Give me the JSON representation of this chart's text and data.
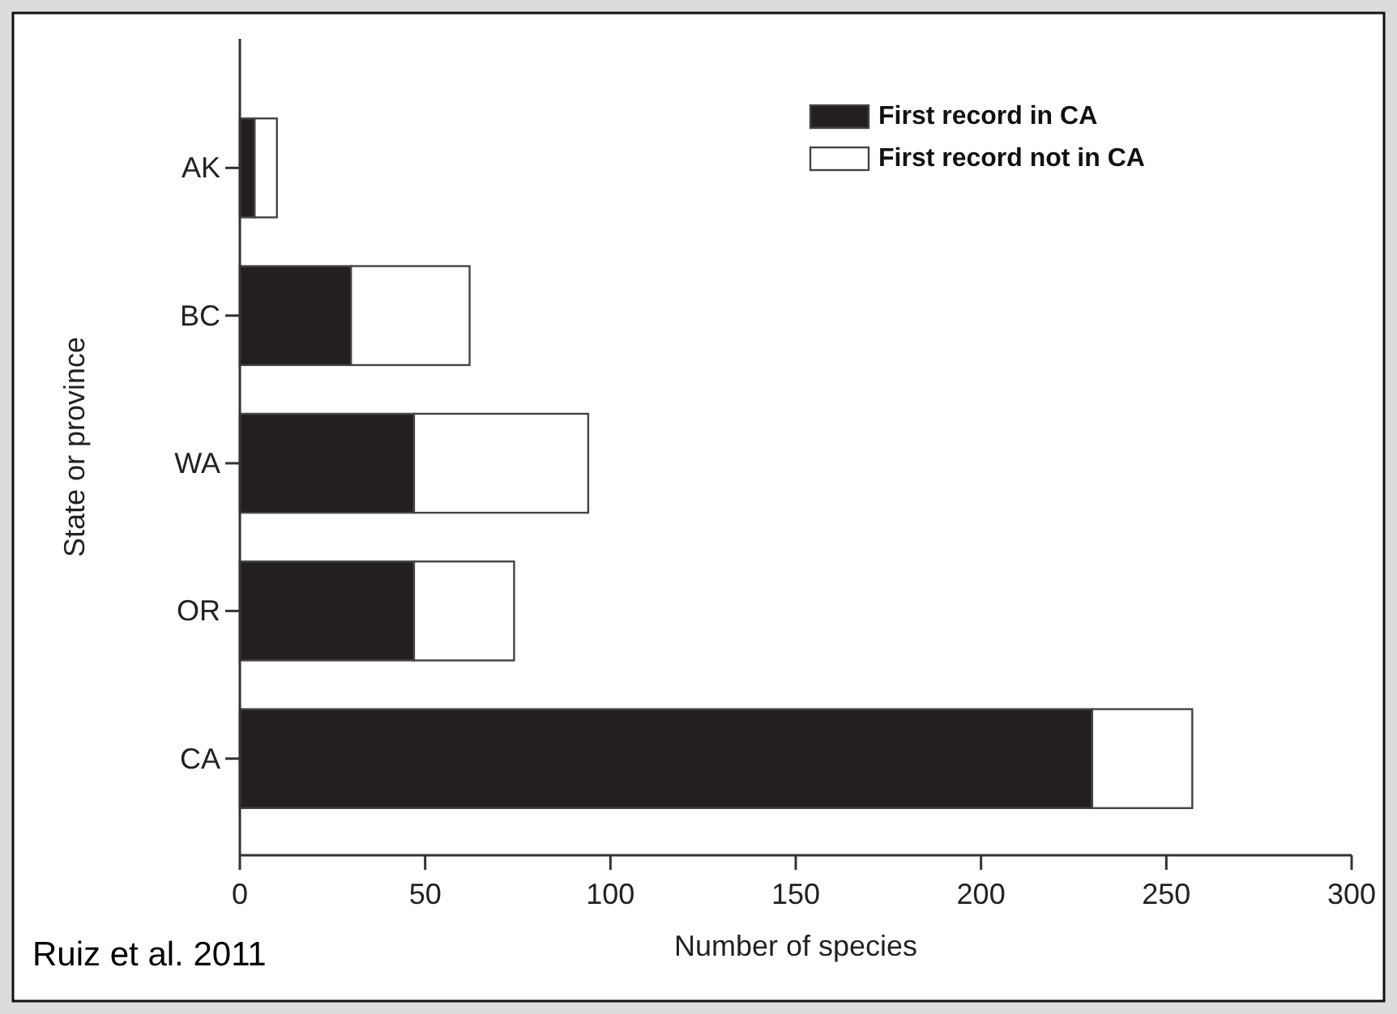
{
  "chart_data": {
    "type": "bar",
    "orientation": "horizontal",
    "stacked": true,
    "ylabel": "State or province",
    "xlabel": "Number of species",
    "categories": [
      "AK",
      "BC",
      "WA",
      "OR",
      "CA"
    ],
    "series": [
      {
        "name": "First record in CA",
        "color": "#231f20",
        "values": [
          4,
          30,
          47,
          47,
          230
        ]
      },
      {
        "name": "First record not in CA",
        "color": "#ffffff",
        "values": [
          6,
          32,
          47,
          27,
          27
        ]
      }
    ],
    "xlim": [
      0,
      300
    ],
    "xticks": [
      0,
      50,
      100,
      150,
      200,
      250,
      300
    ],
    "legend": "top right",
    "grid": false,
    "annotations": [
      "Ruiz et al. 2011"
    ]
  }
}
